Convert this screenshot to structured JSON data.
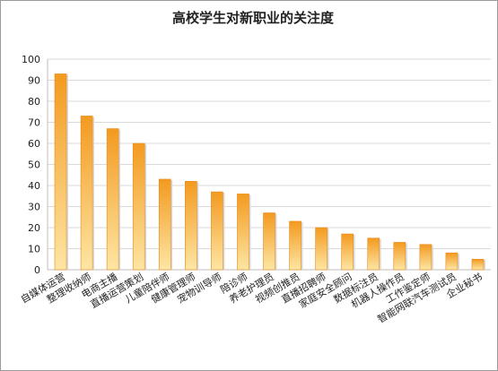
{
  "chart_data": {
    "type": "bar",
    "title": "高校学生对新职业的关注度",
    "xlabel": "",
    "ylabel": "",
    "ylim": [
      0,
      100
    ],
    "yticks": [
      0,
      10,
      20,
      30,
      40,
      50,
      60,
      70,
      80,
      90,
      100
    ],
    "grid": true,
    "legend": "none",
    "categories": [
      "自媒体运营",
      "整理收纳师",
      "电商主播",
      "直播运营策划",
      "儿童陪伴师",
      "健康管理师",
      "宠物训导师",
      "陪诊师",
      "养老护理员",
      "视频创推员",
      "直播招聘师",
      "家庭安全顾问",
      "数据标注员",
      "机器人操作员",
      "工作鉴定师",
      "智能网联汽车测试员",
      "企业秘书"
    ],
    "values": [
      93,
      73,
      67,
      60,
      43,
      42,
      37,
      36,
      27,
      23,
      20,
      17,
      15,
      13,
      12,
      8,
      5
    ],
    "colors": {
      "bar_top": "#f39a1f",
      "bar_bottom": "#fde6a4",
      "grid": "#d9d9d9",
      "axis": "#bfbfbf"
    }
  }
}
